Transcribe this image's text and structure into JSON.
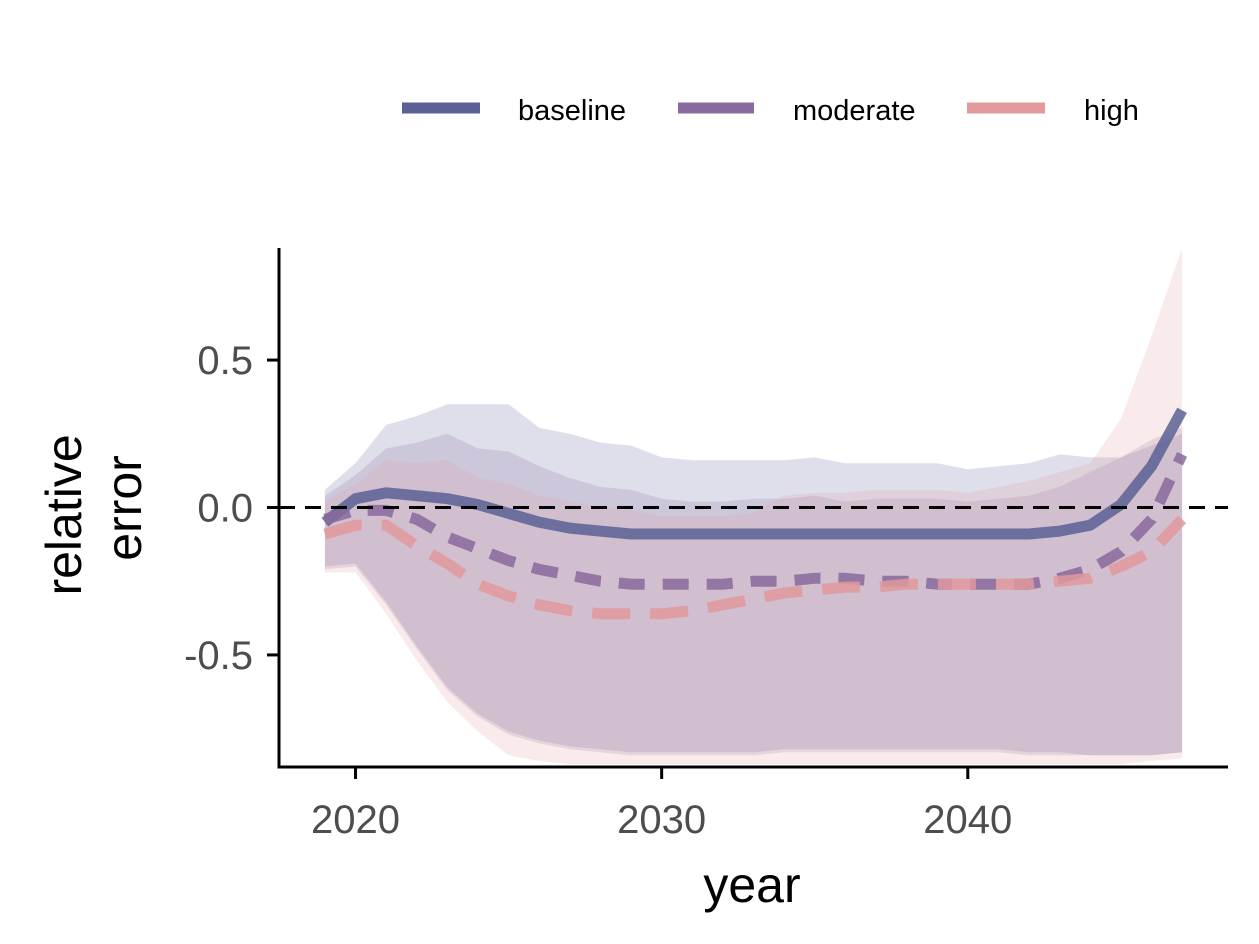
{
  "chart_data": {
    "type": "line",
    "title": "",
    "xlabel": "year",
    "ylabel_lines": [
      "relative",
      "error"
    ],
    "xlim": [
      2017.5,
      2048.5
    ],
    "ylim": [
      -0.88,
      0.88
    ],
    "x_ticks": [
      2020,
      2030,
      2040
    ],
    "x_tick_labels": [
      "2020",
      "2030",
      "2040"
    ],
    "y_ticks": [
      0.5,
      0.0,
      -0.5
    ],
    "y_tick_labels": [
      "0.5",
      "0.0",
      "-0.5"
    ],
    "reference_line": 0.0,
    "grid": false,
    "legend_position": "top",
    "x": [
      2019,
      2020,
      2021,
      2022,
      2023,
      2024,
      2025,
      2026,
      2027,
      2028,
      2029,
      2030,
      2031,
      2032,
      2033,
      2034,
      2035,
      2036,
      2037,
      2038,
      2039,
      2040,
      2041,
      2042,
      2043,
      2044,
      2045,
      2046,
      2047
    ],
    "series": [
      {
        "name": "baseline",
        "color": "#5b6194",
        "dash": "solid",
        "values": [
          -0.05,
          0.03,
          0.05,
          0.04,
          0.03,
          0.01,
          -0.02,
          -0.05,
          -0.07,
          -0.08,
          -0.09,
          -0.09,
          -0.09,
          -0.09,
          -0.09,
          -0.09,
          -0.09,
          -0.09,
          -0.09,
          -0.09,
          -0.09,
          -0.09,
          -0.09,
          -0.09,
          -0.08,
          -0.06,
          0.01,
          0.14,
          0.33
        ],
        "upper": [
          0.06,
          0.15,
          0.28,
          0.31,
          0.35,
          0.35,
          0.35,
          0.27,
          0.25,
          0.22,
          0.21,
          0.17,
          0.16,
          0.16,
          0.16,
          0.16,
          0.17,
          0.15,
          0.15,
          0.15,
          0.15,
          0.13,
          0.14,
          0.15,
          0.18,
          0.17,
          0.17,
          0.21,
          0.25
        ],
        "lower": [
          -0.2,
          -0.19,
          -0.32,
          -0.47,
          -0.61,
          -0.7,
          -0.76,
          -0.79,
          -0.81,
          -0.82,
          -0.83,
          -0.83,
          -0.83,
          -0.83,
          -0.83,
          -0.82,
          -0.82,
          -0.82,
          -0.82,
          -0.82,
          -0.82,
          -0.82,
          -0.82,
          -0.83,
          -0.83,
          -0.84,
          -0.84,
          -0.84,
          -0.83
        ]
      },
      {
        "name": "moderate",
        "color": "#8a6a9e",
        "dash": "medium",
        "values": [
          -0.04,
          -0.01,
          -0.01,
          -0.04,
          -0.1,
          -0.14,
          -0.18,
          -0.21,
          -0.23,
          -0.25,
          -0.26,
          -0.26,
          -0.26,
          -0.26,
          -0.25,
          -0.25,
          -0.24,
          -0.24,
          -0.25,
          -0.25,
          -0.26,
          -0.26,
          -0.26,
          -0.26,
          -0.24,
          -0.21,
          -0.15,
          -0.04,
          0.18
        ],
        "upper": [
          0.04,
          0.11,
          0.2,
          0.22,
          0.25,
          0.2,
          0.19,
          0.14,
          0.1,
          0.07,
          0.06,
          0.03,
          0.02,
          0.02,
          0.03,
          0.03,
          0.04,
          0.02,
          0.03,
          0.03,
          0.03,
          0.02,
          0.03,
          0.04,
          0.07,
          0.12,
          0.17,
          0.23,
          0.27
        ],
        "lower": [
          -0.21,
          -0.2,
          -0.33,
          -0.48,
          -0.62,
          -0.71,
          -0.77,
          -0.8,
          -0.82,
          -0.83,
          -0.84,
          -0.84,
          -0.84,
          -0.84,
          -0.84,
          -0.83,
          -0.83,
          -0.83,
          -0.83,
          -0.83,
          -0.83,
          -0.83,
          -0.83,
          -0.84,
          -0.84,
          -0.84,
          -0.84,
          -0.84,
          -0.83
        ]
      },
      {
        "name": "high",
        "color": "#e1999b",
        "dash": "long",
        "values": [
          -0.09,
          -0.06,
          -0.06,
          -0.13,
          -0.19,
          -0.26,
          -0.3,
          -0.33,
          -0.35,
          -0.36,
          -0.36,
          -0.36,
          -0.35,
          -0.33,
          -0.31,
          -0.29,
          -0.28,
          -0.27,
          -0.27,
          -0.26,
          -0.26,
          -0.26,
          -0.26,
          -0.26,
          -0.25,
          -0.24,
          -0.2,
          -0.15,
          -0.04
        ],
        "upper": [
          0.02,
          0.08,
          0.16,
          0.15,
          0.16,
          0.1,
          0.08,
          0.04,
          0.02,
          0.0,
          -0.01,
          -0.03,
          -0.03,
          -0.03,
          -0.02,
          0.04,
          0.05,
          0.05,
          0.06,
          0.06,
          0.06,
          0.05,
          0.07,
          0.09,
          0.12,
          0.15,
          0.3,
          0.58,
          0.88
        ],
        "lower": [
          -0.22,
          -0.22,
          -0.36,
          -0.52,
          -0.66,
          -0.76,
          -0.84,
          -0.86,
          -0.87,
          -0.87,
          -0.87,
          -0.87,
          -0.87,
          -0.87,
          -0.87,
          -0.87,
          -0.87,
          -0.87,
          -0.87,
          -0.87,
          -0.87,
          -0.87,
          -0.87,
          -0.87,
          -0.87,
          -0.87,
          -0.87,
          -0.86,
          -0.85
        ]
      }
    ]
  }
}
